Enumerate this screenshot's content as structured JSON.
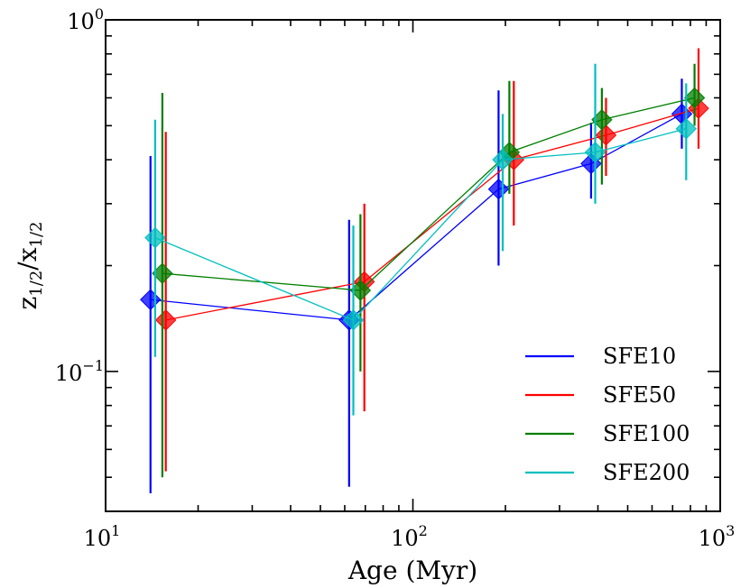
{
  "chart_data": {
    "type": "scatter",
    "title": "",
    "xlabel": "Age (Myr)",
    "ylabel": "z",
    "ylabel_parts": {
      "num": "z",
      "num_sub": "1/2",
      "slash": "/",
      "den": "x",
      "den_sub": "1/2"
    },
    "xscale": "log",
    "yscale": "log",
    "xlim": [
      10,
      1000
    ],
    "ylim": [
      0.04,
      1.0
    ],
    "x_ticks": [
      {
        "value": 10,
        "base": "10",
        "exp": "1"
      },
      {
        "value": 100,
        "base": "10",
        "exp": "2"
      },
      {
        "value": 1000,
        "base": "10",
        "exp": "3"
      }
    ],
    "y_ticks": [
      {
        "value": 0.1,
        "base": "10",
        "exp": "−1"
      },
      {
        "value": 1.0,
        "base": "10",
        "exp": "0"
      }
    ],
    "legend_position": "lower-right",
    "series": [
      {
        "name": "SFE10",
        "color": "#0000ff",
        "x": [
          14,
          62,
          190,
          380,
          750
        ],
        "y": [
          0.16,
          0.14,
          0.33,
          0.39,
          0.54
        ],
        "yerr_low": [
          0.045,
          0.047,
          0.2,
          0.31,
          0.43
        ],
        "yerr_high": [
          0.41,
          0.27,
          0.63,
          0.51,
          0.68
        ]
      },
      {
        "name": "SFE50",
        "color": "#ff0000",
        "x": [
          15.7,
          69.5,
          213,
          425,
          850
        ],
        "y": [
          0.14,
          0.18,
          0.4,
          0.47,
          0.56
        ],
        "yerr_low": [
          0.052,
          0.077,
          0.26,
          0.36,
          0.43
        ],
        "yerr_high": [
          0.48,
          0.3,
          0.67,
          0.6,
          0.83
        ]
      },
      {
        "name": "SFE100",
        "color": "#007f00",
        "x": [
          15.3,
          67.5,
          206,
          412,
          825
        ],
        "y": [
          0.19,
          0.17,
          0.42,
          0.52,
          0.6
        ],
        "yerr_low": [
          0.05,
          0.1,
          0.32,
          0.34,
          0.5
        ],
        "yerr_high": [
          0.62,
          0.28,
          0.67,
          0.64,
          0.75
        ]
      },
      {
        "name": "SFE200",
        "color": "#00bfbf",
        "x": [
          14.5,
          64,
          196,
          392,
          775
        ],
        "y": [
          0.24,
          0.14,
          0.4,
          0.42,
          0.49
        ],
        "yerr_low": [
          0.11,
          0.075,
          0.22,
          0.3,
          0.35
        ],
        "yerr_high": [
          0.52,
          0.26,
          0.54,
          0.75,
          0.66
        ]
      }
    ]
  }
}
